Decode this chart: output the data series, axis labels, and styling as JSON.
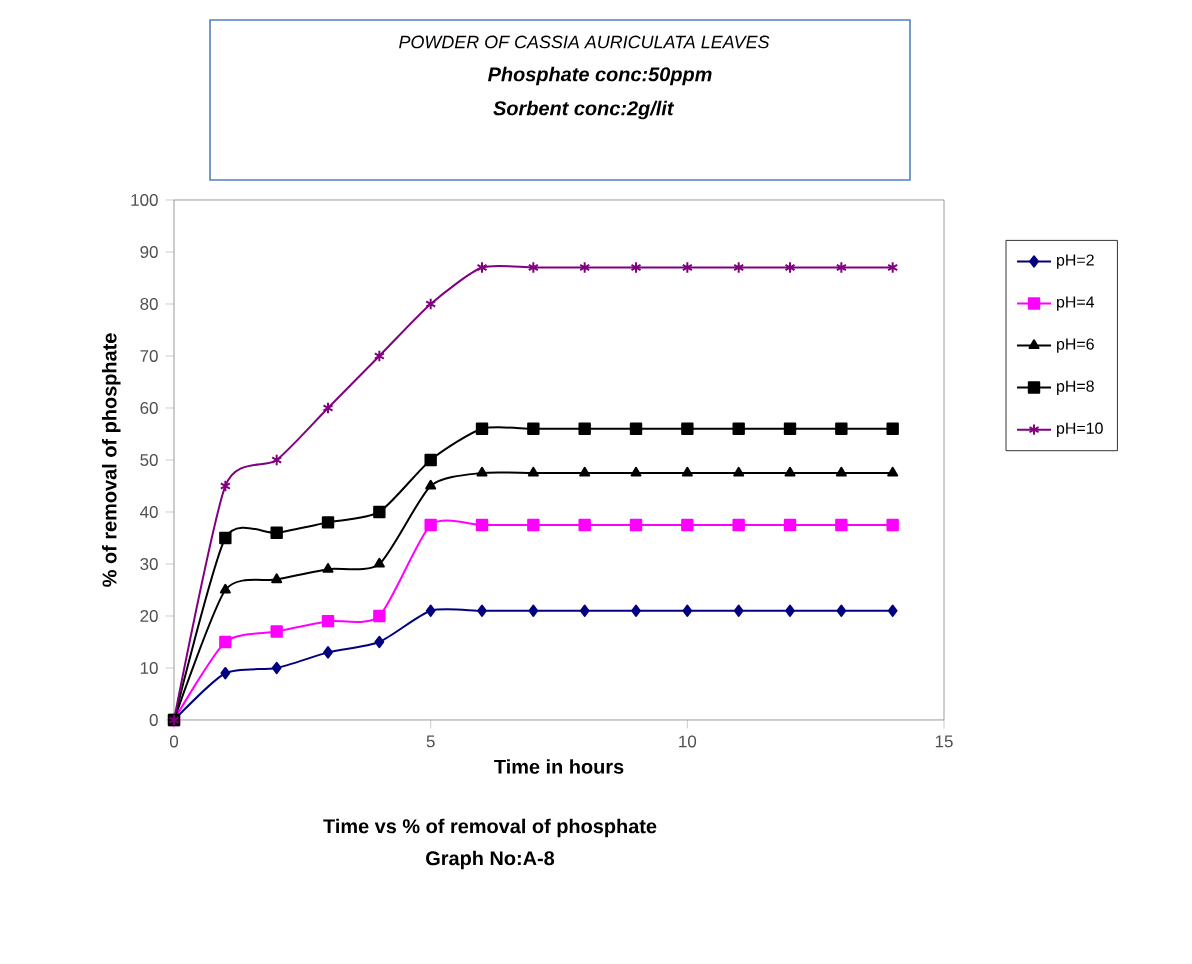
{
  "chart_data": {
    "type": "line",
    "title": "POWDER OF CASSIA AURICULATA  LEAVES",
    "subtitle": "Phosphate conc:50ppm",
    "annotations": [
      "Sorbent conc:2g/lit",
      "Time vs % of removal of phosphate",
      "Graph No:A-8"
    ],
    "xlabel": "Time in hours",
    "ylabel": "% of removal of phosphate",
    "x": [
      0,
      1,
      2,
      3,
      4,
      5,
      6,
      7,
      8,
      9,
      10,
      11,
      12,
      13,
      14
    ],
    "series": [
      {
        "name": "pH=2",
        "color": "#000080",
        "marker": "diamond",
        "values": [
          0,
          9,
          10,
          13,
          15,
          21,
          21,
          21,
          21,
          21,
          21,
          21,
          21,
          21,
          21
        ]
      },
      {
        "name": "pH=4",
        "color": "#ff00ff",
        "marker": "square",
        "values": [
          0,
          15,
          17,
          19,
          20,
          37.5,
          37.5,
          37.5,
          37.5,
          37.5,
          37.5,
          37.5,
          37.5,
          37.5,
          37.5
        ]
      },
      {
        "name": "pH=6",
        "color": "#000000",
        "marker": "triangle",
        "values": [
          0,
          25,
          27,
          29,
          30,
          45,
          47.5,
          47.5,
          47.5,
          47.5,
          47.5,
          47.5,
          47.5,
          47.5,
          47.5
        ]
      },
      {
        "name": "pH=8",
        "color": "#000000",
        "marker": "square",
        "values": [
          0,
          35,
          36,
          38,
          40,
          50,
          56,
          56,
          56,
          56,
          56,
          56,
          56,
          56,
          56
        ]
      },
      {
        "name": "pH=10",
        "color": "#800080",
        "marker": "cross",
        "values": [
          0,
          45,
          50,
          60,
          70,
          80,
          87,
          87,
          87,
          87,
          87,
          87,
          87,
          87,
          87
        ]
      }
    ],
    "xlim": [
      0,
      15
    ],
    "xticks": [
      0,
      5,
      10,
      15
    ],
    "ylim": [
      0,
      100
    ],
    "yticks": [
      0,
      10,
      20,
      30,
      40,
      50,
      60,
      70,
      80,
      90,
      100
    ],
    "line_style": "solid",
    "grid": false,
    "legend": "right"
  }
}
